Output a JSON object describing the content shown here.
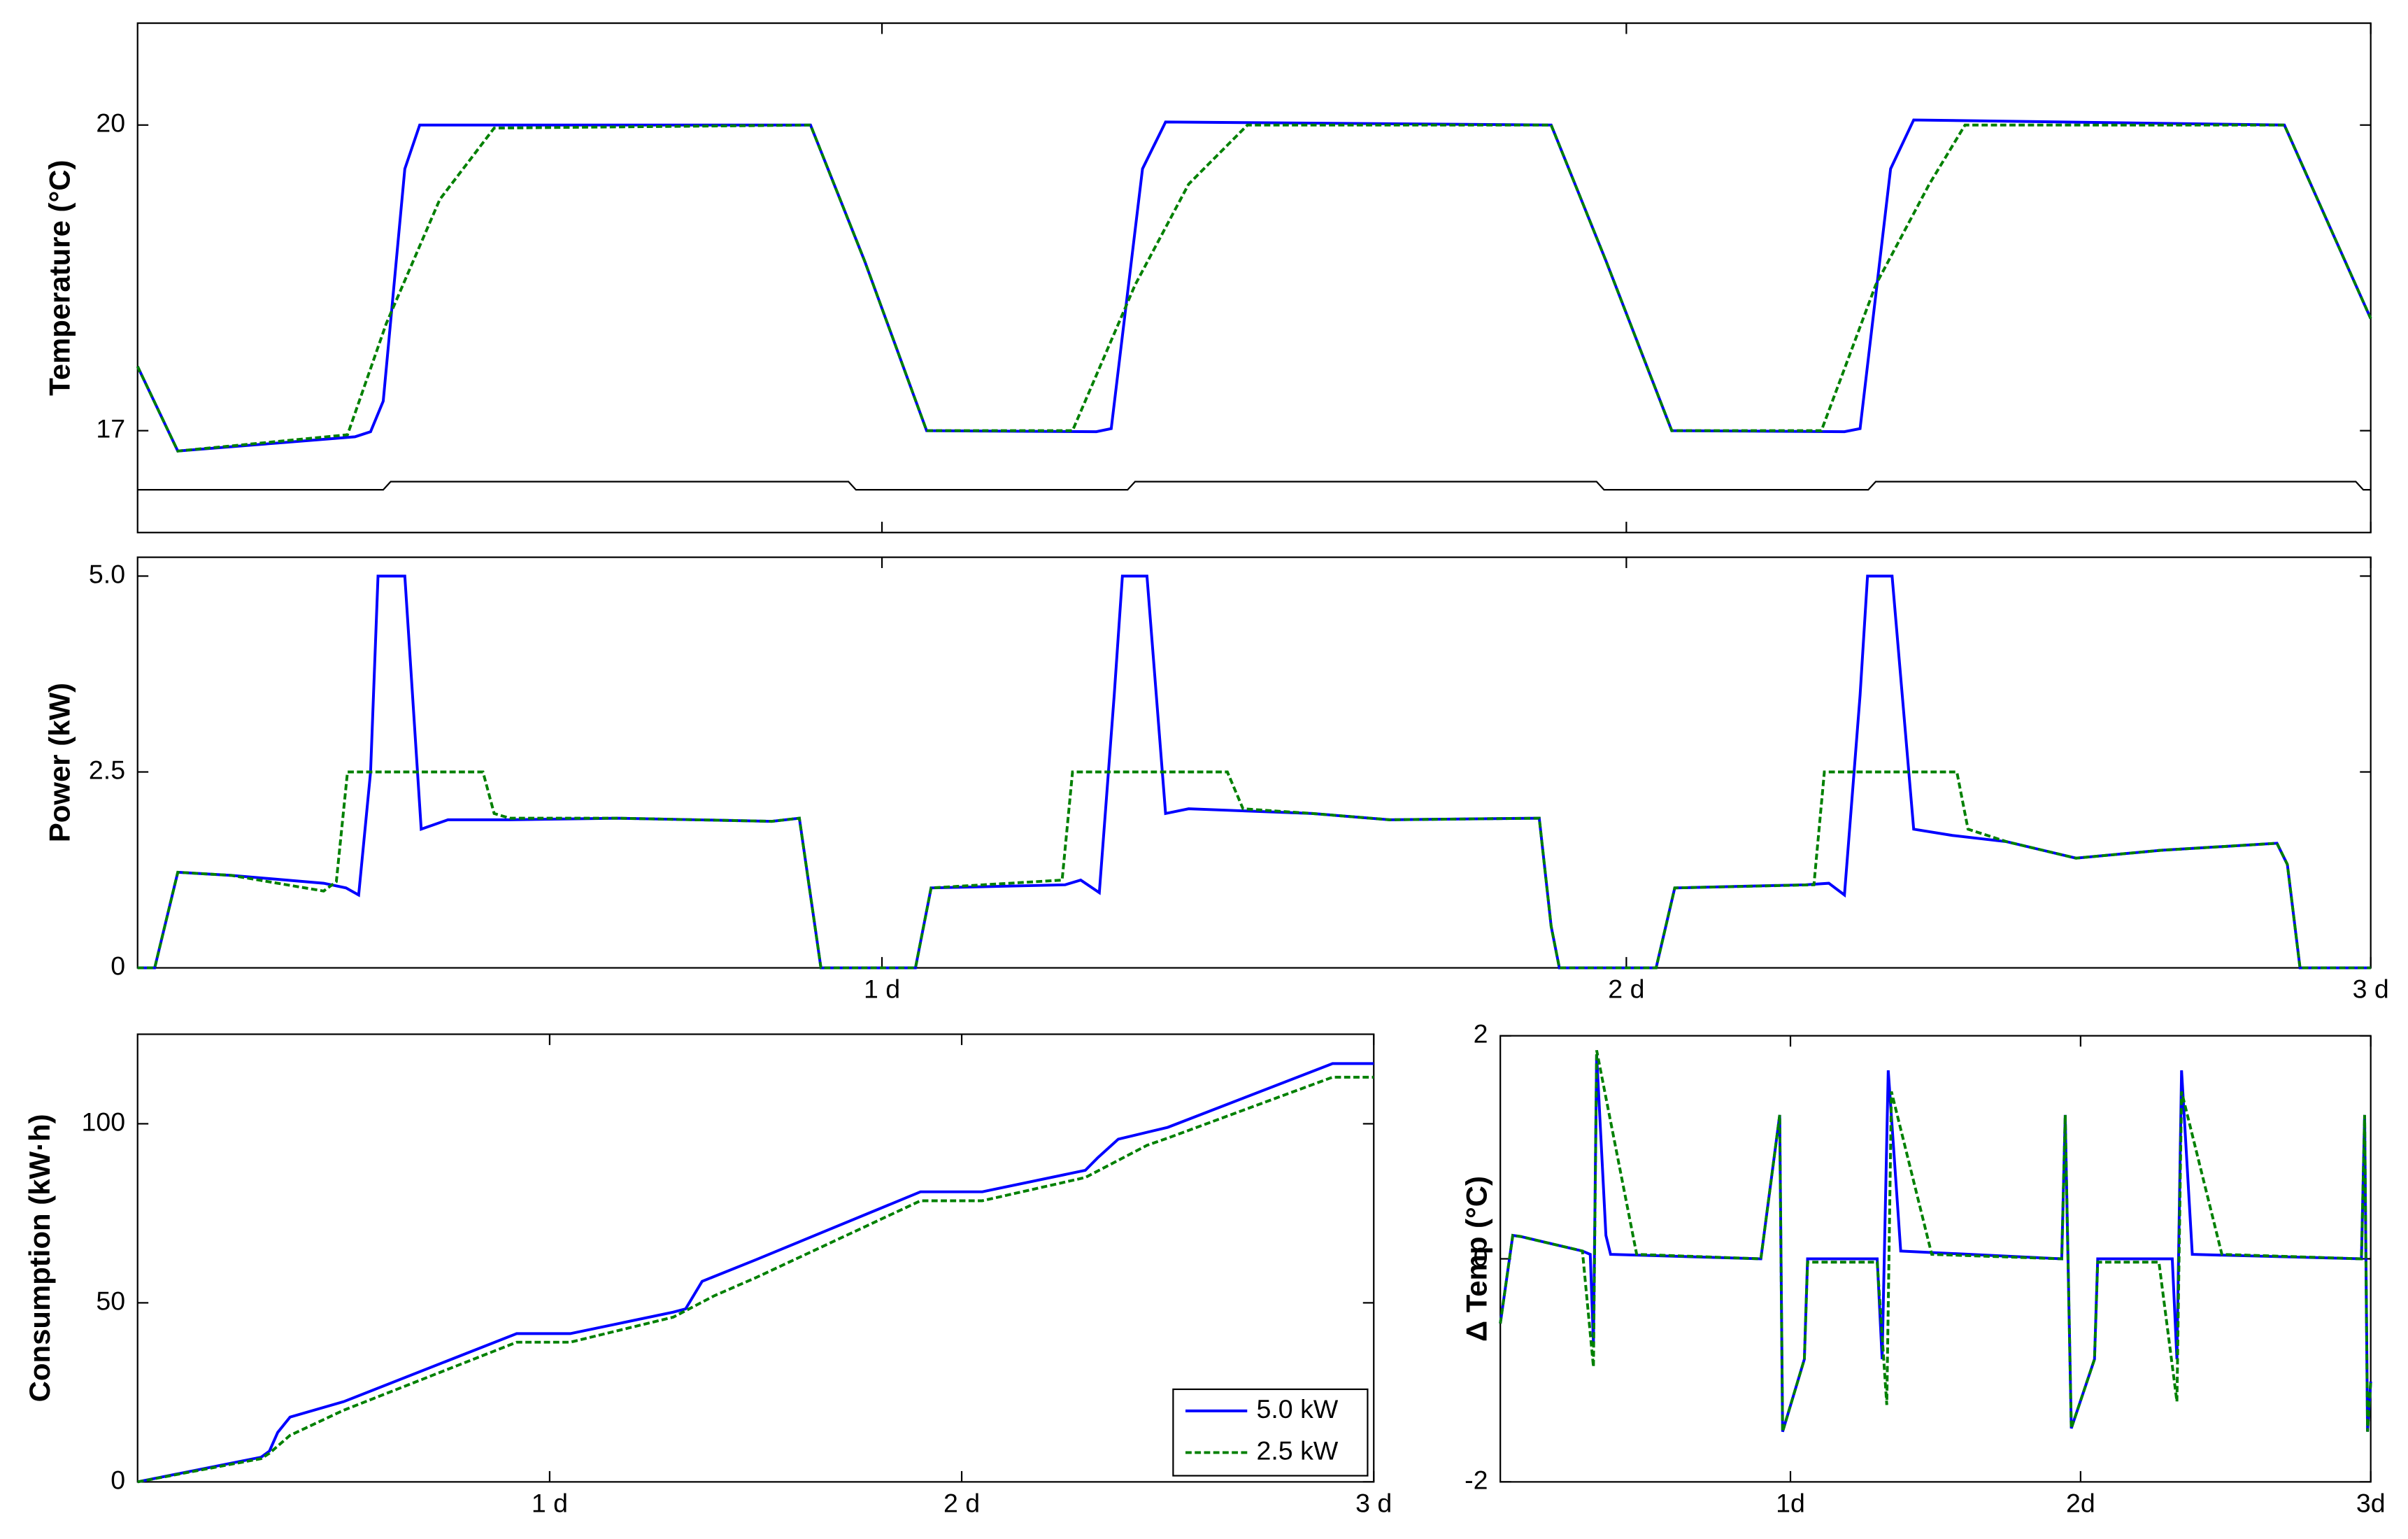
{
  "chart_data": [
    {
      "type": "line",
      "ylabel": "Temperature (°C)",
      "xlim": [
        0,
        3
      ],
      "ylim": [
        16,
        21
      ],
      "yticks": [
        17,
        20
      ],
      "series": [
        {
          "name": "5.0 kW",
          "color": "#0000ff",
          "dashed": false,
          "x": [
            0,
            0.054,
            0.292,
            0.313,
            0.33,
            0.359,
            0.379,
            0.904,
            0.977,
            1.06,
            1.288,
            1.308,
            1.35,
            1.381,
            1.899,
            1.973,
            2.061,
            2.293,
            2.314,
            2.355,
            2.386,
            2.884,
            3
          ],
          "values": [
            17.63,
            16.8,
            16.94,
            16.99,
            17.29,
            19.57,
            20,
            20,
            18.66,
            17,
            16.99,
            17.02,
            19.57,
            20.03,
            20,
            18.66,
            17,
            16.99,
            17.02,
            19.57,
            20.05,
            20,
            18.1
          ]
        },
        {
          "name": "2.5 kW",
          "color": "#008000",
          "dashed": true,
          "x": [
            0,
            0.054,
            0.282,
            0.334,
            0.406,
            0.479,
            0.904,
            0.977,
            1.06,
            1.256,
            1.34,
            1.412,
            1.491,
            1.899,
            1.973,
            2.061,
            2.262,
            2.335,
            2.407,
            2.455,
            2.884,
            3
          ],
          "values": [
            17.63,
            16.8,
            16.96,
            18.05,
            19.27,
            19.97,
            20,
            18.66,
            17,
            17,
            18.43,
            19.42,
            20,
            20,
            18.66,
            17,
            17,
            18.43,
            19.42,
            20,
            20,
            18.1
          ]
        },
        {
          "color": "#000000",
          "dashed": false,
          "x": [
            0,
            0.33,
            0.34,
            0.955,
            0.965,
            1.33,
            1.34,
            1.96,
            1.97,
            2.325,
            2.335,
            2.98,
            2.99,
            3
          ],
          "values": [
            16.42,
            16.42,
            16.5,
            16.5,
            16.42,
            16.42,
            16.5,
            16.5,
            16.42,
            16.42,
            16.5,
            16.5,
            16.42,
            16.42
          ]
        }
      ]
    },
    {
      "type": "line",
      "ylabel": "Power (kW)",
      "xlim": [
        0,
        3
      ],
      "ylim": [
        0,
        5.24
      ],
      "yticks": [
        0,
        2.5,
        {
          "value": 5,
          "label": "5.0"
        }
      ],
      "xticks": [
        {
          "value": 1,
          "label": "1 d"
        },
        {
          "value": 2,
          "label": "2 d"
        },
        {
          "value": 3,
          "label": "3 d"
        }
      ],
      "series": [
        {
          "name": "5.0 kW",
          "color": "#0000ff",
          "dashed": false,
          "x": [
            0,
            0.023,
            0.054,
            0.126,
            0.25,
            0.28,
            0.297,
            0.313,
            0.323,
            0.359,
            0.381,
            0.417,
            0.5,
            0.645,
            0.852,
            0.889,
            0.91,
            0.918,
            1.045,
            1.066,
            1.246,
            1.267,
            1.292,
            1.312,
            1.323,
            1.356,
            1.381,
            1.412,
            1.578,
            1.682,
            1.883,
            1.899,
            1.91,
            2.04,
            2.065,
            2.241,
            2.272,
            2.293,
            2.314,
            2.324,
            2.357,
            2.386,
            2.438,
            2.511,
            2.604,
            2.718,
            2.874,
            2.888,
            2.905,
            3
          ],
          "values": [
            0,
            0,
            1.22,
            1.18,
            1.08,
            1.02,
            0.93,
            2.5,
            5,
            5,
            1.77,
            1.89,
            1.89,
            1.91,
            1.87,
            1.91,
            0.53,
            0,
            0,
            1.02,
            1.06,
            1.12,
            0.96,
            3.48,
            5,
            5,
            1.97,
            2.03,
            1.97,
            1.89,
            1.91,
            0.53,
            0,
            0,
            1.02,
            1.06,
            1.08,
            0.93,
            3.48,
            5,
            5,
            1.77,
            1.69,
            1.61,
            1.4,
            1.5,
            1.59,
            1.32,
            0,
            0
          ]
        },
        {
          "name": "2.5 kW",
          "color": "#008000",
          "dashed": true,
          "x": [
            0,
            0.023,
            0.054,
            0.126,
            0.25,
            0.267,
            0.282,
            0.464,
            0.479,
            0.5,
            0.645,
            0.852,
            0.889,
            0.91,
            0.918,
            1.045,
            1.066,
            1.242,
            1.256,
            1.464,
            1.485,
            1.578,
            1.682,
            1.883,
            1.899,
            1.91,
            2.04,
            2.065,
            2.252,
            2.266,
            2.444,
            2.459,
            2.511,
            2.604,
            2.718,
            2.874,
            2.888,
            2.905,
            3
          ],
          "values": [
            0,
            0,
            1.22,
            1.18,
            0.98,
            1.1,
            2.5,
            2.5,
            1.97,
            1.91,
            1.91,
            1.87,
            1.91,
            0.53,
            0,
            0,
            1.02,
            1.12,
            2.5,
            2.5,
            2.03,
            1.97,
            1.89,
            1.91,
            0.53,
            0,
            0,
            1.02,
            1.06,
            2.5,
            2.5,
            1.77,
            1.61,
            1.4,
            1.5,
            1.59,
            1.32,
            0,
            0
          ]
        }
      ]
    },
    {
      "type": "line",
      "ylabel": "Consumption (kW·h)",
      "xlim": [
        0,
        3
      ],
      "ylim": [
        0,
        125
      ],
      "yticks": [
        0,
        50,
        100
      ],
      "xticks": [
        {
          "value": 1,
          "label": "1 d"
        },
        {
          "value": 2,
          "label": "2 d"
        },
        {
          "value": 3,
          "label": "3 d"
        }
      ],
      "legend": "lower right",
      "series": [
        {
          "name": "5.0 kW",
          "color": "#0000ff",
          "dashed": false,
          "x": [
            0,
            0.3,
            0.32,
            0.34,
            0.37,
            0.5,
            0.92,
            1.05,
            1.3,
            1.33,
            1.37,
            1.5,
            1.9,
            2.05,
            2.3,
            2.33,
            2.38,
            2.5,
            2.9,
            3
          ],
          "values": [
            0,
            6.9,
            8.6,
            13.8,
            18.1,
            22.4,
            41.4,
            41.4,
            47.4,
            48.3,
            56,
            62,
            81,
            81,
            87,
            90.5,
            95.7,
            99,
            116.8,
            116.8
          ]
        },
        {
          "name": "2.5 kW",
          "color": "#008000",
          "dashed": true,
          "x": [
            0,
            0.3,
            0.32,
            0.37,
            0.5,
            0.92,
            1.05,
            1.3,
            1.4,
            1.5,
            1.9,
            2.05,
            2.3,
            2.45,
            2.5,
            2.9,
            3
          ],
          "values": [
            0,
            6.5,
            8,
            13,
            20,
            39,
            39,
            46,
            52,
            57,
            78.5,
            78.5,
            85,
            94,
            96,
            113,
            113
          ]
        }
      ]
    },
    {
      "type": "line",
      "ylabel": "Δ Temp (°C)",
      "xlim": [
        0,
        3
      ],
      "ylim": [
        -2,
        2
      ],
      "yticks": [
        -2,
        0,
        2
      ],
      "xticks": [
        {
          "value": 1,
          "label": "1d"
        },
        {
          "value": 2,
          "label": "2d"
        },
        {
          "value": 3,
          "label": "3d"
        }
      ],
      "series": [
        {
          "name": "5.0 kW",
          "color": "#0000ff",
          "dashed": false,
          "x": [
            0,
            0.043,
            0.07,
            0.283,
            0.31,
            0.321,
            0.332,
            0.364,
            0.38,
            0.898,
            0.963,
            0.973,
            1.048,
            1.059,
            1.299,
            1.316,
            1.337,
            1.38,
            1.935,
            1.947,
            1.968,
            2.048,
            2.059,
            2.316,
            2.332,
            2.348,
            2.385,
            2.968,
            2.979,
            2.989,
            3
          ],
          "values": [
            -0.58,
            0.21,
            0.2,
            0.07,
            0.04,
            -0.76,
            1.83,
            0.21,
            0.04,
            0,
            1.29,
            -1.55,
            -0.9,
            0,
            0,
            -0.9,
            1.69,
            0.07,
            0,
            1.29,
            -1.52,
            -0.9,
            0,
            0,
            -0.9,
            1.69,
            0.04,
            0,
            1.29,
            -1.55,
            -1.1
          ]
        },
        {
          "name": "2.5 kW",
          "color": "#008000",
          "dashed": true,
          "x": [
            0,
            0.043,
            0.07,
            0.283,
            0.321,
            0.332,
            0.47,
            0.898,
            0.963,
            0.973,
            1.048,
            1.059,
            1.299,
            1.332,
            1.348,
            1.487,
            1.935,
            1.947,
            1.968,
            2.048,
            2.059,
            2.27,
            2.332,
            2.348,
            2.487,
            2.968,
            2.979,
            2.989,
            3
          ],
          "values": [
            -0.58,
            0.21,
            0.2,
            0.07,
            -0.97,
            1.87,
            0.04,
            0,
            1.29,
            -1.55,
            -0.9,
            -0.03,
            -0.03,
            -1.31,
            1.5,
            0.04,
            0,
            1.29,
            -1.52,
            -0.9,
            -0.03,
            -0.03,
            -1.28,
            1.5,
            0.04,
            0,
            1.29,
            -1.55,
            -1.1
          ]
        }
      ]
    }
  ]
}
